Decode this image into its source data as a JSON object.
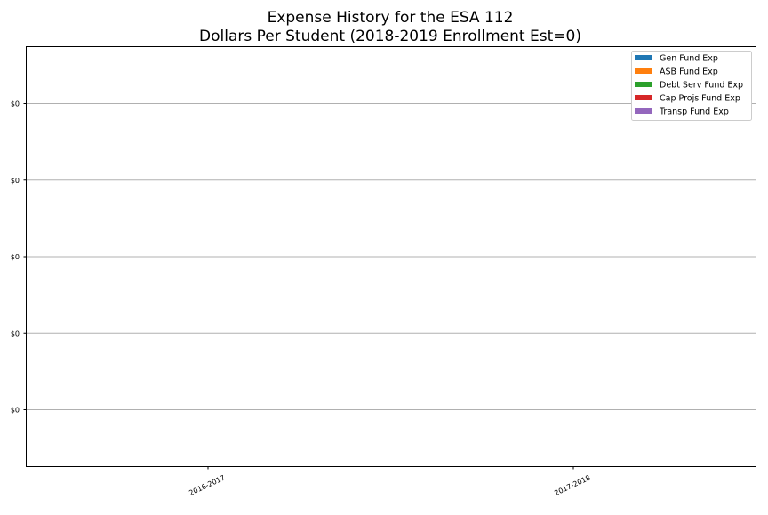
{
  "chart_data": {
    "type": "bar",
    "title": "Expense History for the ESA 112",
    "subtitle": "Dollars Per Student (2018-2019 Enrollment Est=0)",
    "xlabel": "",
    "ylabel": "",
    "categories": [
      "2016-2017",
      "2017-2018"
    ],
    "y_tick_labels": [
      "$0",
      "$0",
      "$0",
      "$0",
      "$0"
    ],
    "grid": "horizontal",
    "legend_position": "top-right",
    "series": [
      {
        "name": "Gen Fund Exp",
        "color": "#1f77b4",
        "values": [
          0,
          0
        ]
      },
      {
        "name": "ASB Fund Exp",
        "color": "#ff7f0e",
        "values": [
          0,
          0
        ]
      },
      {
        "name": "Debt Serv Fund Exp",
        "color": "#2ca02c",
        "values": [
          0,
          0
        ]
      },
      {
        "name": "Cap Projs Fund Exp",
        "color": "#d62728",
        "values": [
          0,
          0
        ]
      },
      {
        "name": "Transp Fund Exp",
        "color": "#9467bd",
        "values": [
          0,
          0
        ]
      }
    ]
  }
}
